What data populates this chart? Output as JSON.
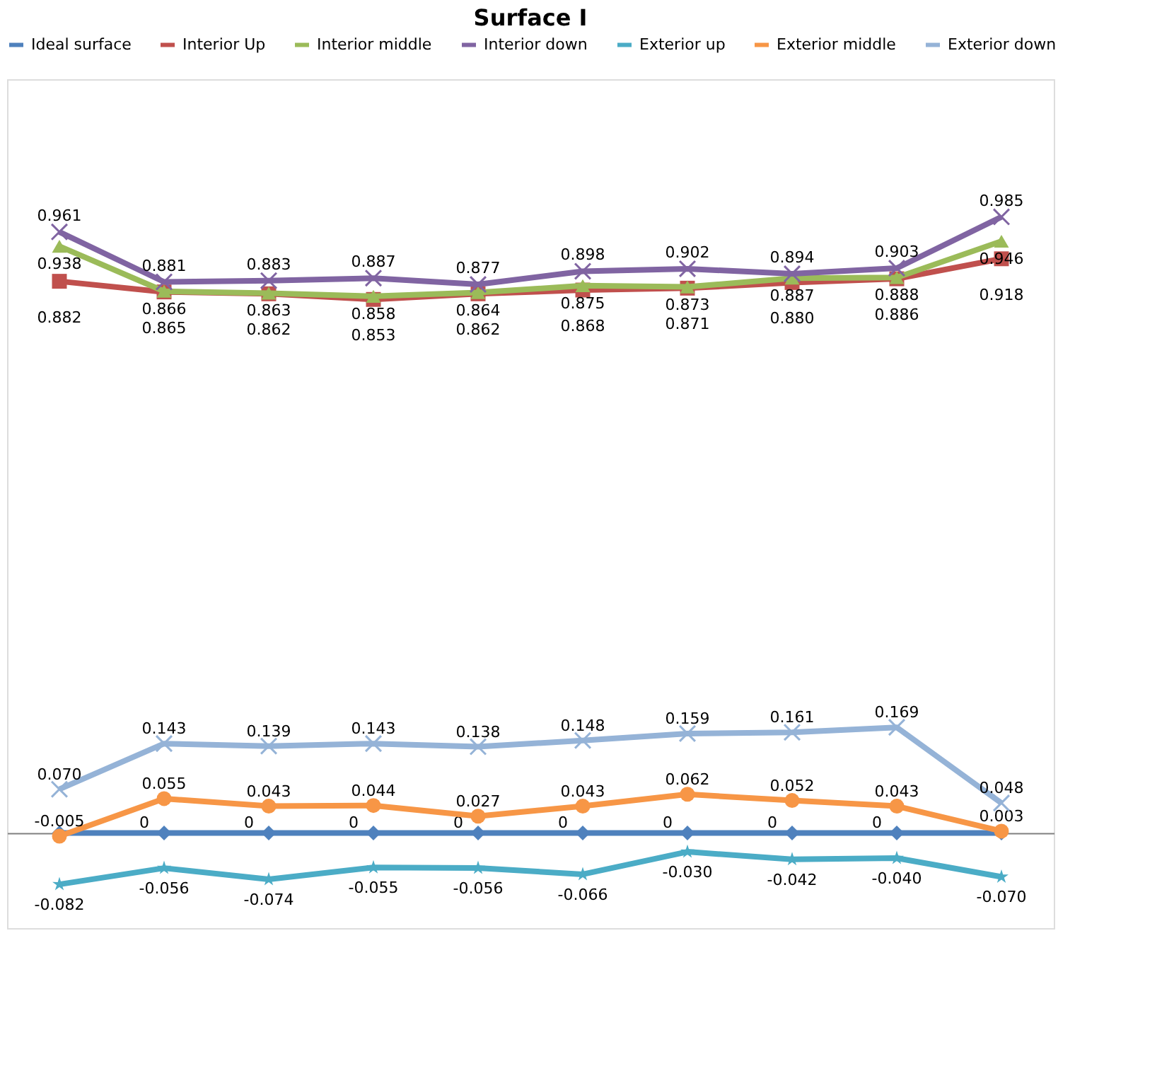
{
  "chart_data": {
    "type": "line",
    "title": "Surface I",
    "categories": [
      null,
      null,
      null,
      null,
      null,
      null,
      null,
      null,
      null,
      null
    ],
    "legend": "top",
    "grid": false,
    "line_style": "solid",
    "series": [
      {
        "name": "Ideal surface",
        "color": "#4f81bd",
        "marker": "diamond",
        "values": [
          0,
          0,
          0,
          0,
          0,
          0,
          0,
          0,
          0,
          0
        ],
        "value_labels": [
          null,
          "0",
          "0",
          "0",
          "0",
          "0",
          "0",
          "0",
          "0",
          null
        ]
      },
      {
        "name": "Interior Up",
        "color": "#c0504d",
        "marker": "square",
        "values": [
          0.882,
          0.865,
          0.862,
          0.853,
          0.862,
          0.868,
          0.871,
          0.88,
          0.886,
          0.918
        ],
        "value_labels": [
          "0.882",
          "0.865",
          "0.862",
          "0.853",
          "0.862",
          "0.868",
          "0.871",
          "0.880",
          "0.886",
          "0.918"
        ]
      },
      {
        "name": "Interior middle",
        "color": "#9bbb59",
        "marker": "triangle",
        "values": [
          0.938,
          0.866,
          0.863,
          0.858,
          0.864,
          0.875,
          0.873,
          0.887,
          0.888,
          0.946
        ],
        "value_labels": [
          "0.938",
          "0.866",
          "0.863",
          "0.858",
          "0.864",
          "0.875",
          "0.873",
          "0.887",
          "0.888",
          "0.946"
        ]
      },
      {
        "name": "Interior down",
        "color": "#8064a2",
        "marker": "cross",
        "values": [
          0.961,
          0.881,
          0.883,
          0.887,
          0.877,
          0.898,
          0.902,
          0.894,
          0.903,
          0.985
        ],
        "value_labels": [
          "0.961",
          "0.881",
          "0.883",
          "0.887",
          "0.877",
          "0.898",
          "0.902",
          "0.894",
          "0.903",
          "0.985"
        ]
      },
      {
        "name": "Exterior up",
        "color": "#4bacc6",
        "marker": "star",
        "values": [
          -0.082,
          -0.056,
          -0.074,
          -0.055,
          -0.056,
          -0.066,
          -0.03,
          -0.042,
          -0.04,
          -0.07
        ],
        "value_labels": [
          "-0.082",
          "-0.056",
          "-0.074",
          "-0.055",
          "-0.056",
          "-0.066",
          "-0.030",
          "-0.042",
          "-0.040",
          "-0.070"
        ]
      },
      {
        "name": "Exterior middle",
        "color": "#f79646",
        "marker": "circle",
        "values": [
          -0.005,
          0.055,
          0.043,
          0.044,
          0.027,
          0.043,
          0.062,
          0.052,
          0.043,
          0.003
        ],
        "value_labels": [
          "-0.005",
          "0.055",
          "0.043",
          "0.044",
          "0.027",
          "0.043",
          "0.062",
          "0.052",
          "0.043",
          "0.003"
        ]
      },
      {
        "name": "Exterior down",
        "color": "#95b3d7",
        "marker": "cross",
        "values": [
          0.07,
          0.143,
          0.139,
          0.143,
          0.138,
          0.148,
          0.159,
          0.161,
          0.169,
          0.048
        ],
        "value_labels": [
          "0.070",
          "0.143",
          "0.139",
          "0.143",
          "0.138",
          "0.148",
          "0.159",
          "0.161",
          "0.169",
          "0.048"
        ]
      }
    ]
  }
}
